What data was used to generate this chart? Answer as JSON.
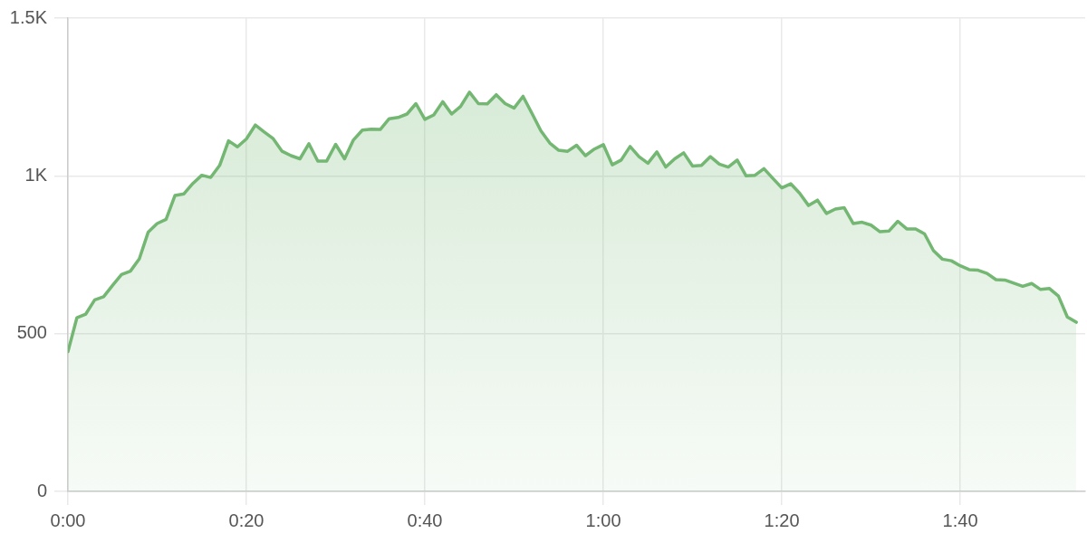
{
  "chart_data": {
    "type": "area",
    "x": [
      0,
      1,
      2,
      3,
      4,
      5,
      6,
      7,
      8,
      9,
      10,
      11,
      12,
      13,
      14,
      15,
      16,
      17,
      18,
      19,
      20,
      21,
      22,
      23,
      24,
      25,
      26,
      27,
      28,
      29,
      30,
      31,
      32,
      33,
      34,
      35,
      36,
      37,
      38,
      39,
      40,
      41,
      42,
      43,
      44,
      45,
      46,
      47,
      48,
      49,
      50,
      51,
      52,
      53,
      54,
      55,
      56,
      57,
      58,
      59,
      60,
      61,
      62,
      63,
      64,
      65,
      66,
      67,
      68,
      69,
      70,
      71,
      72,
      73,
      74,
      75,
      76,
      77,
      78,
      79,
      80,
      81,
      82,
      83,
      84,
      85,
      86,
      87,
      88,
      89,
      90,
      91,
      92,
      93,
      94,
      95,
      96,
      97,
      98,
      99,
      100,
      101,
      102,
      103,
      104,
      105,
      106,
      107,
      108,
      109,
      110,
      111,
      112,
      113
    ],
    "series": [
      {
        "color": "#73b773",
        "values": [
          443,
          550,
          562,
          607,
          617,
          653,
          687,
          698,
          737,
          822,
          849,
          862,
          938,
          943,
          976,
          1002,
          995,
          1033,
          1111,
          1092,
          1117,
          1161,
          1139,
          1118,
          1078,
          1064,
          1054,
          1102,
          1047,
          1047,
          1100,
          1054,
          1114,
          1145,
          1148,
          1147,
          1181,
          1185,
          1196,
          1229,
          1179,
          1193,
          1235,
          1196,
          1220,
          1265,
          1229,
          1228,
          1257,
          1229,
          1215,
          1252,
          1198,
          1143,
          1104,
          1081,
          1078,
          1097,
          1064,
          1085,
          1099,
          1035,
          1050,
          1093,
          1061,
          1040,
          1076,
          1028,
          1054,
          1073,
          1031,
          1033,
          1061,
          1037,
          1028,
          1050,
          1000,
          1002,
          1023,
          992,
          962,
          975,
          945,
          906,
          923,
          881,
          895,
          899,
          849,
          853,
          844,
          823,
          825,
          856,
          832,
          832,
          816,
          763,
          736,
          731,
          715,
          703,
          701,
          691,
          671,
          670,
          660,
          650,
          659,
          640,
          643,
          619,
          553,
          536
        ]
      }
    ],
    "xlim": [
      0,
      114
    ],
    "ylim": [
      0,
      1500
    ],
    "xticks": [
      {
        "value": 0,
        "label": "0:00"
      },
      {
        "value": 20,
        "label": "0:20"
      },
      {
        "value": 40,
        "label": "0:40"
      },
      {
        "value": 60,
        "label": "1:00"
      },
      {
        "value": 80,
        "label": "1:20"
      },
      {
        "value": 100,
        "label": "1:40"
      }
    ],
    "yticks": [
      0,
      500,
      {
        "value": 1000,
        "label": "1K"
      },
      {
        "value": 1500,
        "label": "1.5K"
      }
    ],
    "grid": true,
    "marker": "none",
    "line_style": "solid"
  }
}
